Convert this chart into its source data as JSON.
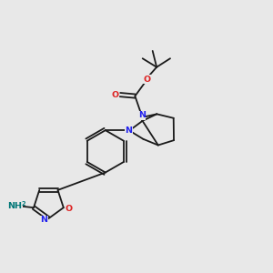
{
  "bg_color": "#e8e8e8",
  "bond_color": "#1a1a1a",
  "N_color": "#2222ee",
  "O_color": "#dd2222",
  "NH2_color": "#007777",
  "lw": 1.3,
  "fs": 6.8,
  "xlim": [
    0,
    10
  ],
  "ylim": [
    0,
    10
  ]
}
